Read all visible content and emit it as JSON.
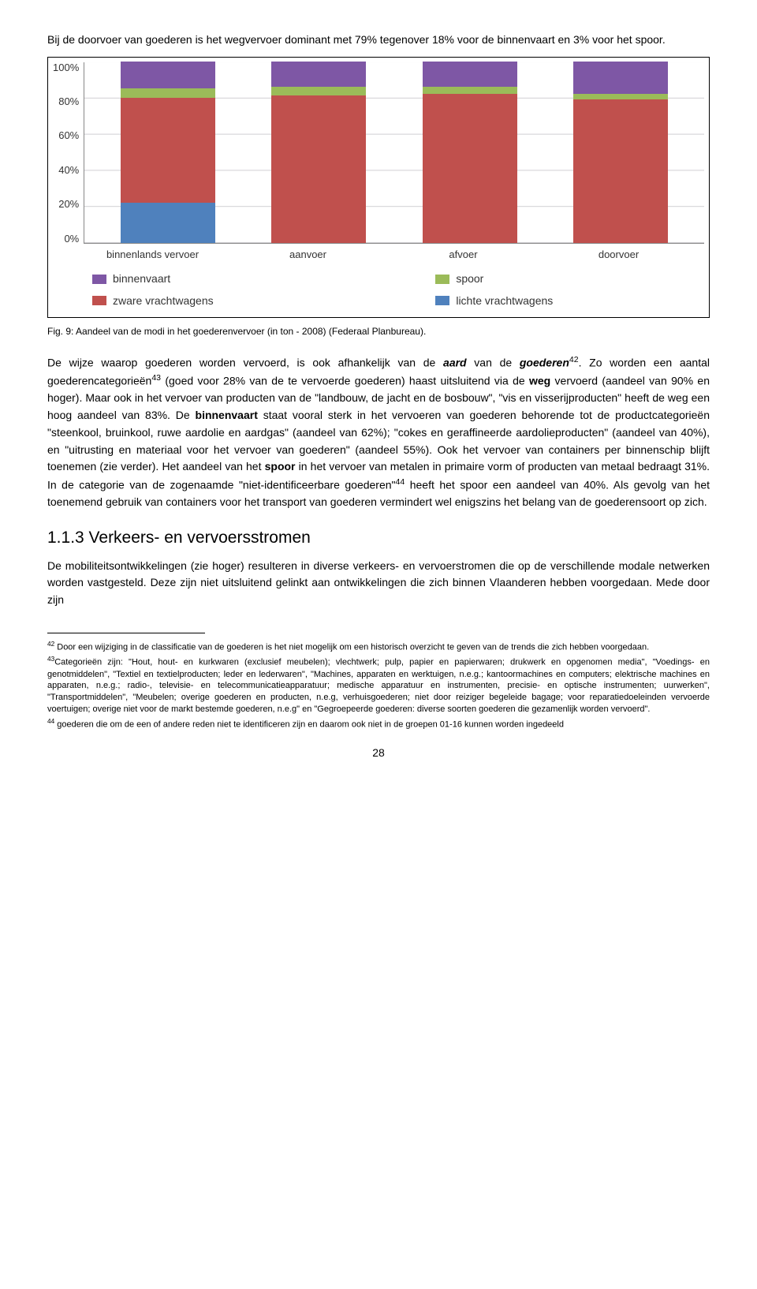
{
  "intro_1": "Bij de doorvoer van goederen is het wegvervoer dominant met 79% tegenover 18% voor de binnenvaart en 3% voor het spoor.",
  "chart": {
    "colors": {
      "binnenvaart": "#7e57a5",
      "spoor": "#9bbb59",
      "zware": "#c0504d",
      "lichte": "#4f81bd",
      "bg": "#ffffff",
      "grid": "#d0cfd3"
    },
    "categories": [
      "binnenlands vervoer",
      "aanvoer",
      "afvoer",
      "doorvoer"
    ],
    "yticks": [
      "100%",
      "80%",
      "60%",
      "40%",
      "20%",
      "0%"
    ],
    "series_order": [
      "binnenvaart",
      "spoor",
      "zware",
      "lichte"
    ],
    "bars": [
      {
        "binnenvaart": 15,
        "spoor": 5,
        "zware": 58,
        "lichte": 22
      },
      {
        "binnenvaart": 14,
        "spoor": 5,
        "zware": 81,
        "lichte": 0
      },
      {
        "binnenvaart": 14,
        "spoor": 4,
        "zware": 82,
        "lichte": 0
      },
      {
        "binnenvaart": 18,
        "spoor": 3,
        "zware": 79,
        "lichte": 0
      }
    ],
    "legend": [
      {
        "key": "binnenvaart",
        "color": "#7e57a5",
        "label": "binnenvaart"
      },
      {
        "key": "spoor",
        "color": "#9bbb59",
        "label": "spoor"
      },
      {
        "key": "zware",
        "color": "#c0504d",
        "label": "zware vrachtwagens"
      },
      {
        "key": "lichte",
        "color": "#4f81bd",
        "label": "lichte vrachtwagens"
      }
    ]
  },
  "caption": "Fig. 9: Aandeel van de modi in het goederenvervoer (in ton - 2008) (Federaal Planbureau).",
  "body": {
    "p1a": "De wijze waarop goederen worden vervoerd, is ook afhankelijk van de ",
    "p1b_em": "aard",
    "p1c": " van de ",
    "p1d_em": "goederen",
    "p1e_sup": "42",
    "p1f": ". Zo worden een aantal goederencategorieën",
    "p1g_sup": "43",
    "p1h": " (goed voor 28% van de te vervoerde goederen) haast uitsluitend via de ",
    "p1i_b": "weg",
    "p1j": " vervoerd (aandeel van 90% en hoger). Maar ook in het vervoer van producten van de \"landbouw, de jacht en de bosbouw\", \"vis en visserijproducten\" heeft de weg een hoog aandeel van 83%. De ",
    "p1k_b": "binnenvaart",
    "p1l": " staat vooral sterk in het vervoeren van goederen behorende tot de productcategorieën \"steenkool, bruinkool, ruwe aardolie en aardgas\" (aandeel van 62%); \"cokes en geraffineerde aardolieproducten\" (aandeel van 40%), en \"uitrusting en materiaal voor het vervoer van goederen\" (aandeel 55%). Ook het vervoer van containers per binnenschip blijft toenemen (zie verder). Het aandeel van het ",
    "p1m_b": "spoor",
    "p1n": " in het vervoer van metalen in primaire vorm of producten van metaal bedraagt 31%. In de categorie van de zogenaamde \"niet-identificeerbare goederen\"",
    "p1o_sup": "44",
    "p1p": " heeft het spoor een aandeel van 40%. Als gevolg van het toenemend gebruik van containers voor het transport van goederen vermindert wel enigszins het belang van de goederensoort op zich."
  },
  "section_heading": "1.1.3  Verkeers- en vervoersstromen",
  "p2": "De mobiliteitsontwikkelingen (zie hoger) resulteren in diverse verkeers- en vervoerstromen die op de verschillende modale netwerken worden vastgesteld. Deze zijn niet uitsluitend gelinkt aan ontwikkelingen die zich binnen Vlaanderen hebben voorgedaan. Mede door zijn",
  "footnotes": {
    "f42_sup": "42",
    "f42": " Door een wijziging in de classificatie van de goederen is het niet mogelijk om een historisch overzicht te geven van de trends die zich hebben voorgedaan.",
    "f43_sup": "43",
    "f43": "Categorieën zijn: \"Hout, hout- en kurkwaren (exclusief meubelen); vlechtwerk; pulp, papier en papierwaren; drukwerk en opgenomen media\", \"Voedings- en genotmiddelen\", \"Textiel en textielproducten; leder en lederwaren\", \"Machines, apparaten en werktuigen, n.e.g.; kantoormachines en computers; elektrische machines en apparaten, n.e.g.; radio-, televisie- en telecommunicatieapparatuur; medische apparatuur en instrumenten, precisie- en optische instrumenten; uurwerken\", \"Transportmiddelen\", \"Meubelen; overige goederen en producten, n.e.g, verhuisgoederen; niet door reiziger begeleide bagage; voor reparatiedoeleinden vervoerde voertuigen; overige niet voor de markt bestemde goederen, n.e.g\" en \"Gegroepeerde goederen: diverse soorten goederen die gezamenlijk worden vervoerd\".",
    "f44_sup": "44",
    "f44": " goederen die om de een of andere reden niet te identificeren zijn en daarom ook niet in de groepen 01-16 kunnen worden ingedeeld"
  },
  "page_number": "28"
}
